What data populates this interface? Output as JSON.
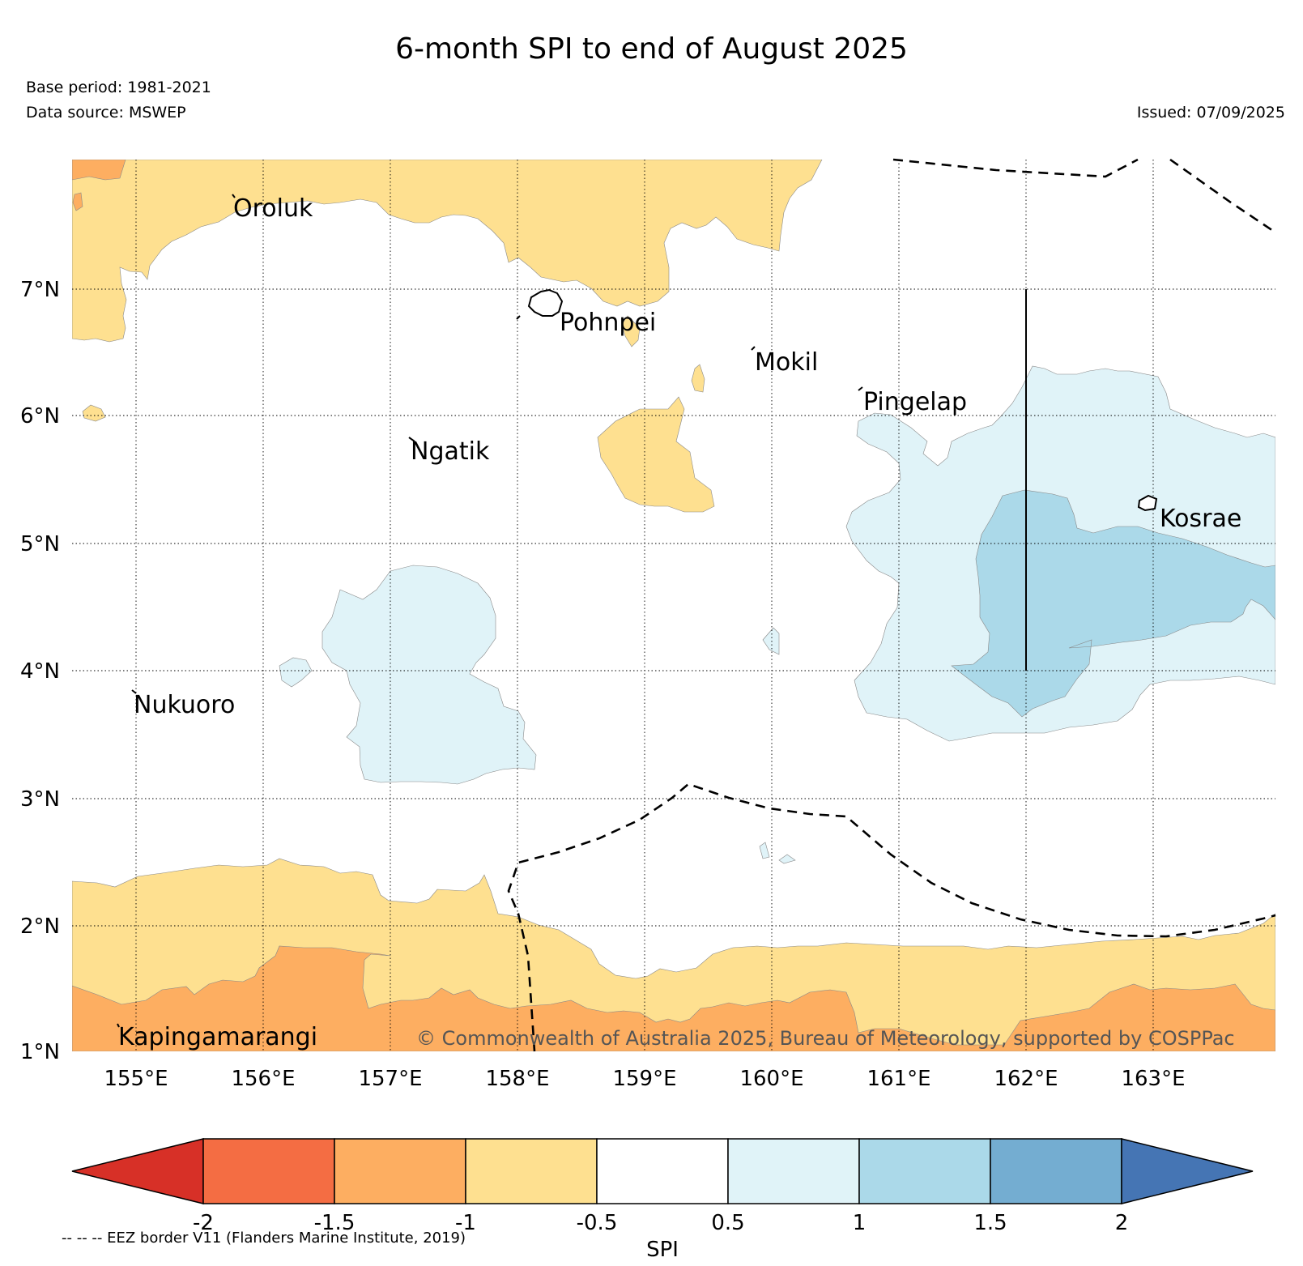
{
  "title": "6-month SPI to end of August 2025",
  "base_period": "Base period: 1981-2021",
  "data_source": "Data source: MSWEP",
  "issued": "Issued: 07/09/2025",
  "copyright": "© Commonwealth of Australia 2025, Bureau of Meteorology, supported by COSPPac",
  "eez_note": "-- -- -- EEZ border V11 (Flanders Marine Institute, 2019)",
  "axes": {
    "lat_labels": [
      "7°N",
      "6°N",
      "5°N",
      "4°N",
      "3°N",
      "2°N",
      "1°N"
    ],
    "lon_labels": [
      "155°E",
      "156°E",
      "157°E",
      "158°E",
      "159°E",
      "160°E",
      "161°E",
      "162°E",
      "163°E"
    ]
  },
  "places": {
    "oroluk": "Oroluk",
    "pohnpei": "Pohnpei",
    "mokil": "Mokil",
    "pingelap": "Pingelap",
    "ngatik": "Ngatik",
    "kosrae": "Kosrae",
    "nukuoro": "Nukuoro",
    "kapingamarangi": "Kapingamarangi"
  },
  "colorbar": {
    "label": "SPI",
    "ticks": [
      "-2",
      "-1.5",
      "-1",
      "-0.5",
      "0.5",
      "1",
      "1.5",
      "2"
    ],
    "colors": {
      "below_-2": "#d73027",
      "-2_-1.5": "#f46d43",
      "-1.5_-1": "#fdae61",
      "-1_-0.5": "#fee090",
      "-0.5_0.5": "#ffffff",
      "0.5_1": "#e0f3f8",
      "1_1.5": "#abd9e9",
      "1.5_2": "#74add1",
      "above_2": "#4575b4"
    }
  }
}
